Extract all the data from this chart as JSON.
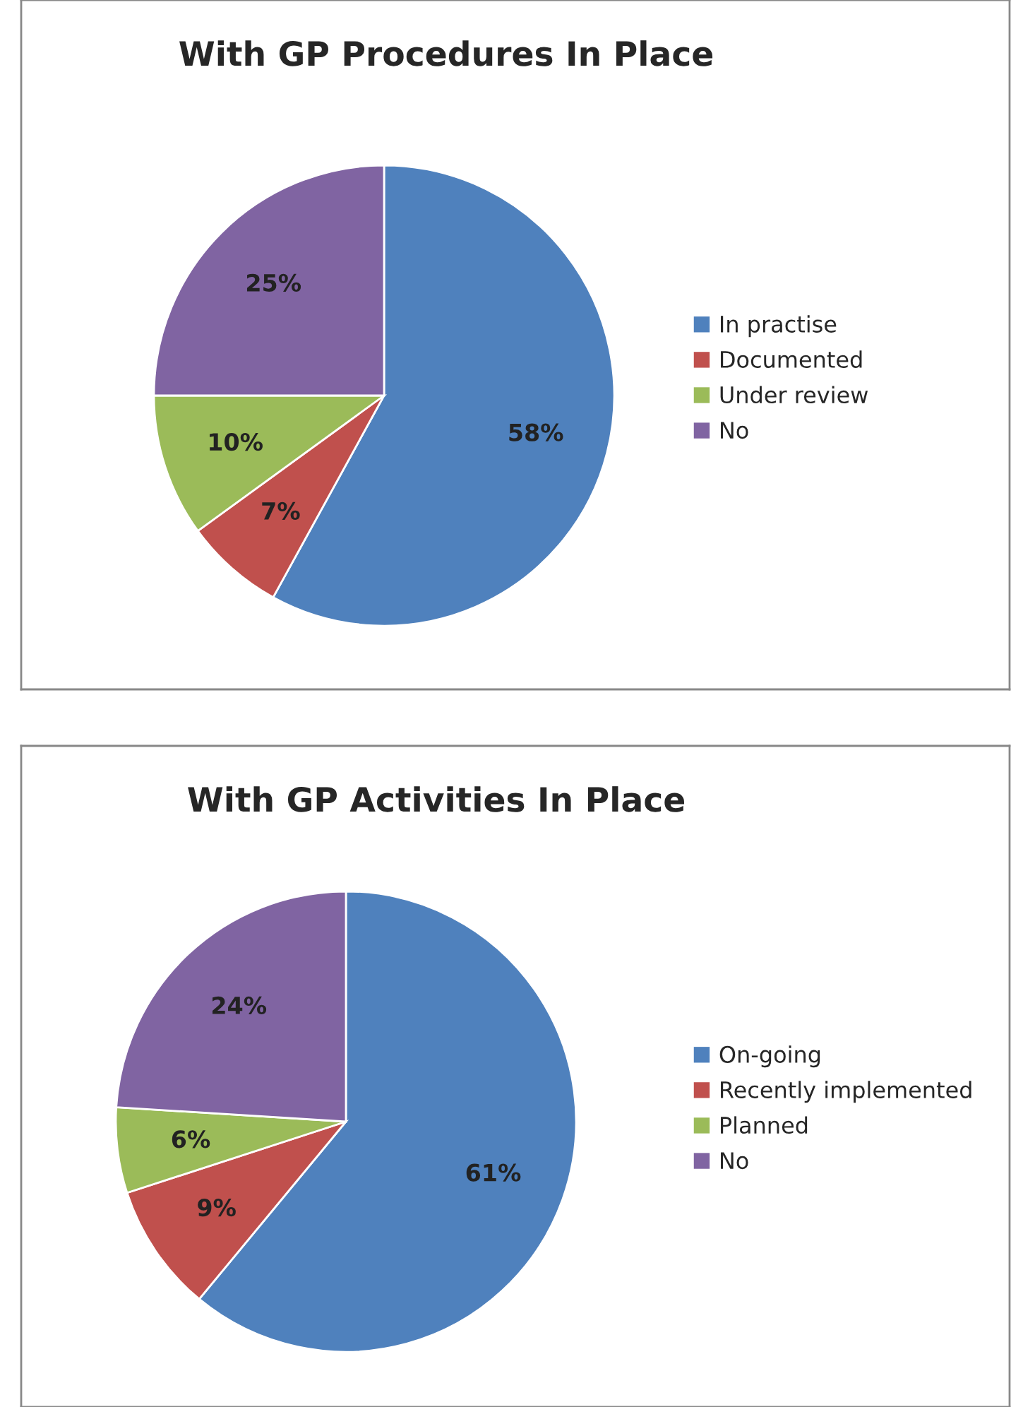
{
  "chart_data": [
    {
      "type": "pie",
      "title": "With GP Procedures In Place",
      "categories": [
        "In practise",
        "Documented",
        "Under review",
        "No"
      ],
      "values": [
        58,
        7,
        10,
        25
      ],
      "value_labels": [
        "58%",
        "7%",
        "10%",
        "25%"
      ],
      "colors": [
        "#4f81bd",
        "#c0504d",
        "#9bbb59",
        "#8064a2"
      ],
      "legend": "right"
    },
    {
      "type": "pie",
      "title": "With GP Activities In Place",
      "categories": [
        "On-going",
        "Recently implemented",
        "Planned",
        "No"
      ],
      "values": [
        61,
        9,
        6,
        24
      ],
      "value_labels": [
        "61%",
        "9%",
        "6%",
        "24%"
      ],
      "colors": [
        "#4f81bd",
        "#c0504d",
        "#9bbb59",
        "#8064a2"
      ],
      "legend": "right"
    }
  ]
}
